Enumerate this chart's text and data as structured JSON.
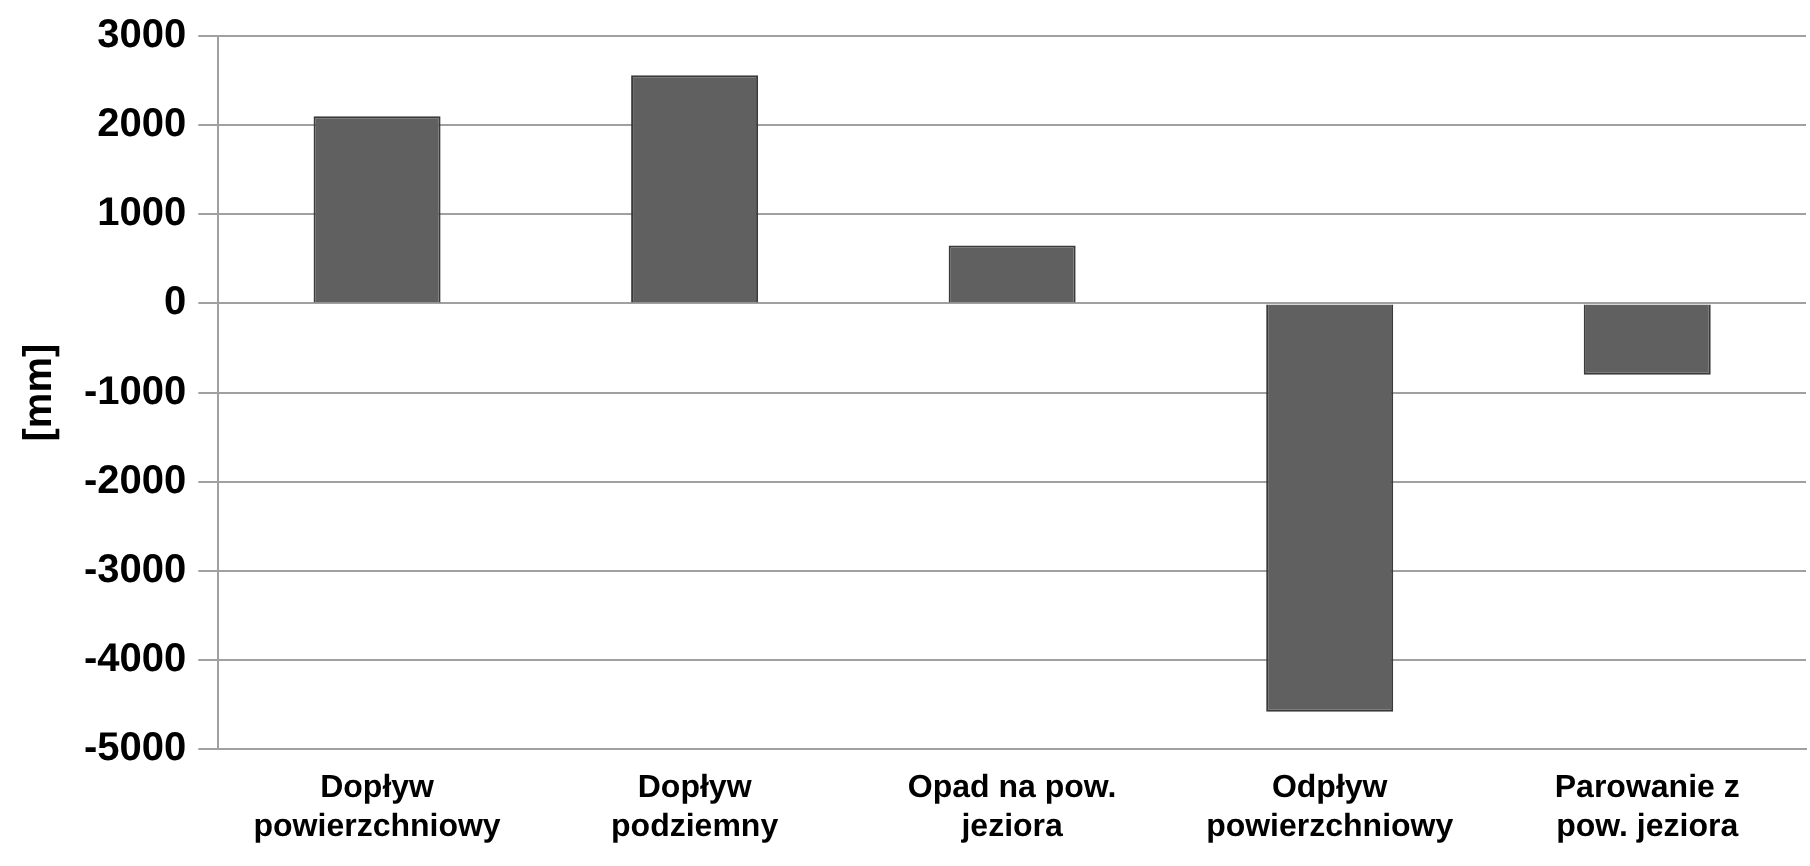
{
  "chart_data": {
    "type": "bar",
    "ylabel": "[mm]",
    "categories": [
      "Dopływ powierzchniowy",
      "Dopływ podziemny",
      "Opad na pow. jeziora",
      "Odpływ powierzchniowy",
      "Parowanie z pow. jeziora"
    ],
    "values": [
      2100,
      2560,
      650,
      -4580,
      -800
    ],
    "color": "#606060",
    "ylim": [
      -5000,
      3000
    ],
    "yticks": [
      -5000,
      -4000,
      -3000,
      -2000,
      -1000,
      0,
      1000,
      2000,
      3000
    ],
    "grid": "y",
    "legend": false
  }
}
